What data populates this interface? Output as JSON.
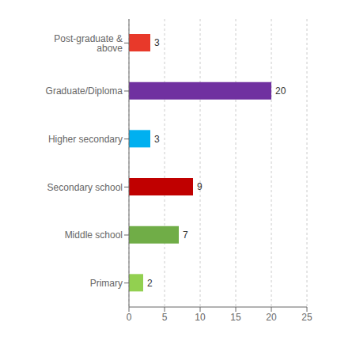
{
  "chart_data": {
    "type": "bar",
    "orientation": "horizontal",
    "categories": [
      "Post-graduate & above",
      "Graduate/Diploma",
      "Higher secondary",
      "Secondary school",
      "Middle school",
      "Primary"
    ],
    "values": [
      3,
      20,
      3,
      9,
      7,
      2
    ],
    "colors": [
      "#e8392a",
      "#7030a0",
      "#00b0f0",
      "#c00000",
      "#70ad47",
      "#92d050"
    ],
    "xlim": [
      0,
      25
    ],
    "xticks": [
      0,
      5,
      10,
      15,
      20,
      25
    ],
    "grid": true,
    "data_labels": true
  }
}
